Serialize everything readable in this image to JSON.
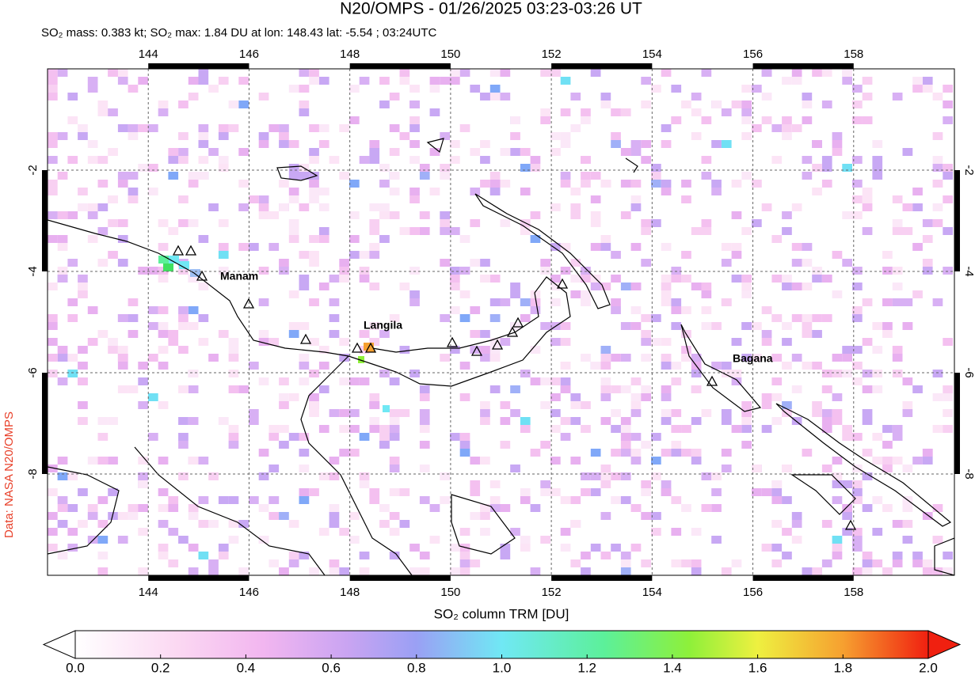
{
  "header": {
    "title": "N20/OMPS - 01/26/2025 03:23-03:26 UT",
    "subtitle": "SO₂ mass: 0.383 kt; SO₂ max: 1.84 DU at lon: 148.43 lat: -5.54 ; 03:24UTC"
  },
  "map": {
    "lon_range": [
      142,
      160
    ],
    "lat_range": [
      -10,
      0
    ],
    "lon_ticks": [
      144,
      146,
      148,
      150,
      152,
      154,
      156,
      158
    ],
    "lat_ticks": [
      -2,
      -4,
      -6,
      -8
    ],
    "volcano_labels": [
      "Manam",
      "Langila",
      "Bagana"
    ],
    "credit": "Data: NASA N20/OMPS"
  },
  "colorbar": {
    "label": "SO₂ column TRM [DU]",
    "range": [
      0,
      2
    ],
    "ticks": [
      {
        "value": 0,
        "label": "0.0"
      },
      0.2,
      0.4,
      0.6,
      0.8,
      {
        "value": 1,
        "label": "1.0"
      },
      1.2,
      1.4,
      1.6,
      1.8,
      {
        "value": 2,
        "label": "2.0"
      }
    ]
  }
}
